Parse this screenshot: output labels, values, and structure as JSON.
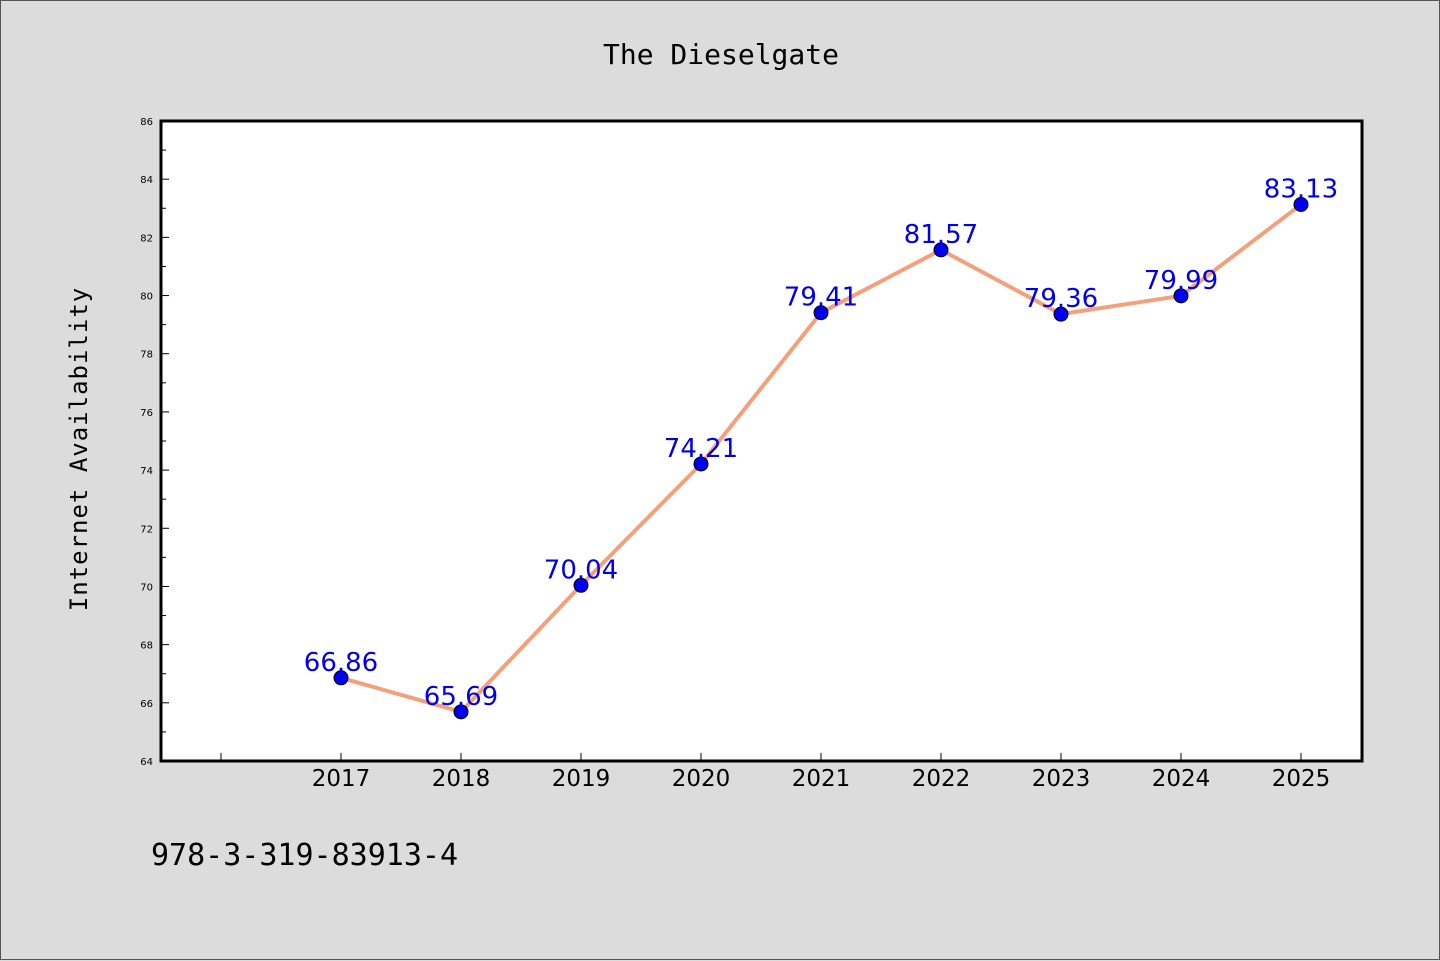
{
  "chart_data": {
    "type": "line",
    "title": "The Dieselgate",
    "xlabel": "",
    "ylabel": "Internet Availability",
    "categories": [
      "2017",
      "2018",
      "2019",
      "2020",
      "2021",
      "2022",
      "2023",
      "2024",
      "2025"
    ],
    "series": [
      {
        "values": [
          66.86,
          65.69,
          70.04,
          74.21,
          79.41,
          81.57,
          79.36,
          79.99,
          83.13
        ],
        "data_labels": [
          "66.86",
          "65.69",
          "70.04",
          "74.21",
          "79.41",
          "81.57",
          "79.36",
          "79.99",
          "83.13"
        ],
        "line_color": "#f4a07a",
        "marker_color": "#0000ee"
      }
    ],
    "ylim": [
      64,
      86
    ],
    "yticks": [
      "64",
      "66",
      "68",
      "70",
      "72",
      "74",
      "76",
      "78",
      "80",
      "82",
      "84",
      "86"
    ],
    "grid": false,
    "legend": "none"
  },
  "footer_text": "978-3-319-83913-4"
}
